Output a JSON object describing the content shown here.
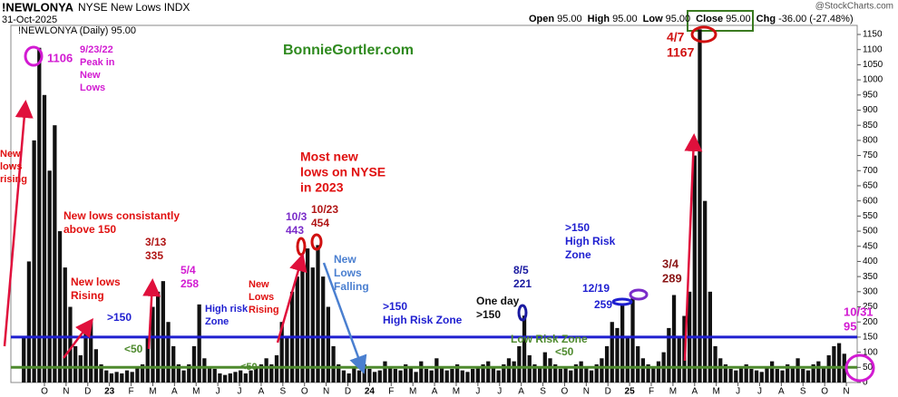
{
  "chart_data": {
    "type": "bar",
    "title": "!NEWLONYA",
    "subtitle": "NYSE New Lows INDX",
    "date": "31-Oct-2025",
    "source": "@StockCharts.com",
    "legend": "!NEWLONYA (Daily) 95.00",
    "quote": [
      {
        "label": "Open",
        "value": "95.00"
      },
      {
        "label": "High",
        "value": "95.00"
      },
      {
        "label": "Low",
        "value": "95.00"
      },
      {
        "label": "Close",
        "value": "95.00"
      },
      {
        "label": "Chg",
        "value": "-36.00 (-27.48%)"
      }
    ],
    "watermark": "BonnieGortler.com",
    "color": "#111111",
    "values": [
      150,
      400,
      800,
      1106,
      950,
      700,
      850,
      500,
      380,
      250,
      120,
      90,
      180,
      200,
      110,
      60,
      40,
      30,
      35,
      30,
      40,
      35,
      50,
      60,
      150,
      250,
      300,
      335,
      200,
      120,
      60,
      40,
      60,
      120,
      258,
      80,
      50,
      45,
      30,
      25,
      30,
      35,
      40,
      30,
      40,
      50,
      60,
      80,
      60,
      90,
      200,
      150,
      300,
      350,
      400,
      443,
      380,
      454,
      350,
      250,
      120,
      60,
      40,
      30,
      50,
      40,
      60,
      45,
      35,
      40,
      70,
      50,
      45,
      40,
      60,
      50,
      35,
      70,
      45,
      40,
      80,
      50,
      40,
      45,
      60,
      40,
      35,
      45,
      50,
      60,
      70,
      50,
      40,
      60,
      80,
      70,
      120,
      221,
      90,
      60,
      50,
      100,
      80,
      60,
      45,
      50,
      40,
      60,
      70,
      50,
      40,
      60,
      80,
      120,
      200,
      180,
      259,
      150,
      280,
      120,
      80,
      60,
      50,
      70,
      100,
      180,
      289,
      150,
      220,
      300,
      750,
      1167,
      600,
      300,
      120,
      80,
      60,
      45,
      40,
      50,
      60,
      45,
      40,
      35,
      50,
      70,
      45,
      40,
      60,
      50,
      80,
      45,
      40,
      60,
      70,
      50,
      90,
      120,
      130,
      95
    ],
    "ylim": [
      0,
      1180
    ],
    "yticks": [
      0,
      50,
      100,
      150,
      200,
      250,
      300,
      350,
      400,
      450,
      500,
      550,
      600,
      650,
      700,
      750,
      800,
      850,
      900,
      950,
      1000,
      1050,
      1100,
      1150
    ],
    "xlim": [
      -2.5,
      161.5
    ],
    "xticks": [
      {
        "value": 4,
        "label": "O"
      },
      {
        "value": 8.2,
        "label": "N"
      },
      {
        "value": 12.4,
        "label": "D"
      },
      {
        "value": 16.6,
        "label": "23"
      },
      {
        "value": 20.8,
        "label": "F"
      },
      {
        "value": 25,
        "label": "M"
      },
      {
        "value": 29.2,
        "label": "A"
      },
      {
        "value": 33.4,
        "label": "M"
      },
      {
        "value": 37.6,
        "label": "J"
      },
      {
        "value": 41.8,
        "label": "J"
      },
      {
        "value": 46,
        "label": "A"
      },
      {
        "value": 50.2,
        "label": "S"
      },
      {
        "value": 54.4,
        "label": "O"
      },
      {
        "value": 58.6,
        "label": "N"
      },
      {
        "value": 62.8,
        "label": "D"
      },
      {
        "value": 67,
        "label": "24"
      },
      {
        "value": 71.2,
        "label": "F"
      },
      {
        "value": 75.4,
        "label": "M"
      },
      {
        "value": 79.6,
        "label": "A"
      },
      {
        "value": 83.8,
        "label": "M"
      },
      {
        "value": 88,
        "label": "J"
      },
      {
        "value": 92.2,
        "label": "J"
      },
      {
        "value": 96.4,
        "label": "A"
      },
      {
        "value": 100.6,
        "label": "S"
      },
      {
        "value": 104.8,
        "label": "O"
      },
      {
        "value": 109,
        "label": "N"
      },
      {
        "value": 113.2,
        "label": "D"
      },
      {
        "value": 117.4,
        "label": "25"
      },
      {
        "value": 121.6,
        "label": "F"
      },
      {
        "value": 125.8,
        "label": "M"
      },
      {
        "value": 130,
        "label": "A"
      },
      {
        "value": 134.2,
        "label": "M"
      },
      {
        "value": 138.4,
        "label": "J"
      },
      {
        "value": 142.6,
        "label": "J"
      },
      {
        "value": 146.8,
        "label": "A"
      },
      {
        "value": 151,
        "label": "S"
      },
      {
        "value": 155.2,
        "label": "O"
      },
      {
        "value": 159.4,
        "label": "N"
      }
    ],
    "reference_lines": [
      {
        "value": 150,
        "color": "#1f1fd0"
      },
      {
        "value": 50,
        "color": "#4e8a2e"
      }
    ],
    "annotations": [
      {
        "lines": [
          "1106"
        ],
        "color": "#d21bd2"
      },
      {
        "lines": [
          "9/23/22",
          "Peak in",
          "New",
          "Lows"
        ],
        "color": "#d21bd2"
      },
      {
        "lines": [
          "New",
          "lows",
          "rising"
        ],
        "color": "#e01010"
      },
      {
        "lines": [
          "New lows consistantly",
          "above 150"
        ],
        "color": "#e01010"
      },
      {
        "lines": [
          "New lows",
          "Rising"
        ],
        "color": "#e01010"
      },
      {
        "lines": [
          ">150"
        ],
        "color": "#1f1fd0"
      },
      {
        "lines": [
          "<50"
        ],
        "color": "#4e8a2e"
      },
      {
        "lines": [
          "3/13",
          "335"
        ],
        "color": "#b01515"
      },
      {
        "lines": [
          "5/4",
          "258"
        ],
        "color": "#d21bd2"
      },
      {
        "lines": [
          "High risk",
          "Zone"
        ],
        "color": "#1f1fd0"
      },
      {
        "lines": [
          "New",
          "Lows",
          "Rising"
        ],
        "color": "#e01010"
      },
      {
        "lines": [
          "<50"
        ],
        "color": "#4e8a2e"
      },
      {
        "lines": [
          "Most new",
          "lows on NYSE",
          "in 2023"
        ],
        "color": "#e01010"
      },
      {
        "lines": [
          "10/3",
          "443"
        ],
        "color": "#7a2cc9"
      },
      {
        "lines": [
          "10/23",
          "454"
        ],
        "color": "#b01515"
      },
      {
        "lines": [
          "New",
          "Lows",
          "Falling"
        ],
        "color": "#4a7fd0"
      },
      {
        "lines": [
          ">150",
          "High Risk Zone"
        ],
        "color": "#1f1fd0"
      },
      {
        "lines": [
          "One day",
          ">150"
        ],
        "color": "#111111"
      },
      {
        "lines": [
          "8/5",
          "221"
        ],
        "color": "#1a1aa0"
      },
      {
        "lines": [
          ">150",
          "High Risk",
          "Zone"
        ],
        "color": "#1f1fd0"
      },
      {
        "lines": [
          "12/19"
        ],
        "color": "#1f1fd0"
      },
      {
        "lines": [
          "259"
        ],
        "color": "#1f1fd0"
      },
      {
        "lines": [
          "Low Risk Zone"
        ],
        "color": "#4e8a2e"
      },
      {
        "lines": [
          "<50"
        ],
        "color": "#4e8a2e"
      },
      {
        "lines": [
          "3/4",
          "289"
        ],
        "color": "#8a1515"
      },
      {
        "lines": [
          "4/7",
          "1167"
        ],
        "color": "#d01010"
      },
      {
        "lines": [
          "10/31",
          "95"
        ],
        "color": "#d21bd2"
      }
    ]
  }
}
